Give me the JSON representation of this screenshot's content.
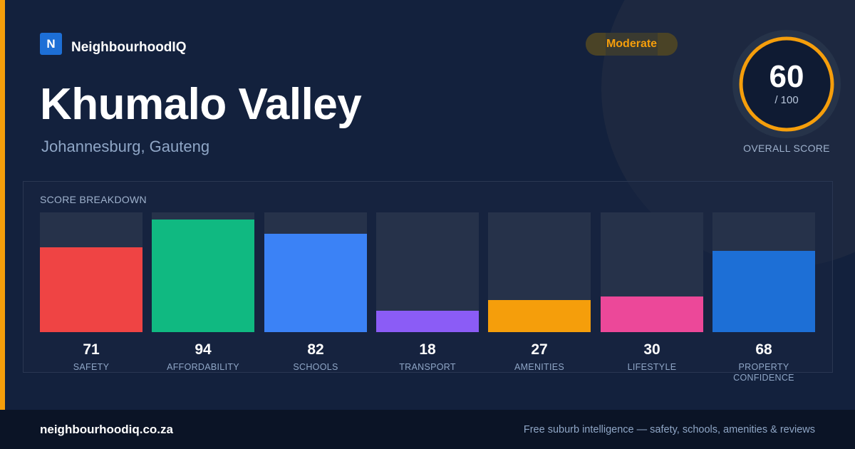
{
  "brand": {
    "logo_letter": "N",
    "name": "NeighbourhoodIQ"
  },
  "suburb": {
    "name": "Khumalo Valley",
    "location": "Johannesburg, Gauteng"
  },
  "rating_badge": "Moderate",
  "overall": {
    "score": "60",
    "max": "/ 100",
    "caption": "OVERALL SCORE",
    "fraction": 0.6
  },
  "breakdown": {
    "heading": "SCORE BREAKDOWN",
    "max": 100,
    "items": [
      {
        "label": "SAFETY",
        "value": 71,
        "value_text": "71",
        "color": "#ef4444"
      },
      {
        "label": "AFFORDABILITY",
        "value": 94,
        "value_text": "94",
        "color": "#10b981"
      },
      {
        "label": "SCHOOLS",
        "value": 82,
        "value_text": "82",
        "color": "#3b82f6"
      },
      {
        "label": "TRANSPORT",
        "value": 18,
        "value_text": "18",
        "color": "#8b5cf6"
      },
      {
        "label": "AMENITIES",
        "value": 27,
        "value_text": "27",
        "color": "#f59e0b"
      },
      {
        "label": "LIFESTYLE",
        "value": 30,
        "value_text": "30",
        "color": "#ec4899"
      },
      {
        "label": "PROPERTY CONFIDENCE",
        "value": 68,
        "value_text": "68",
        "color": "#1d6fd6"
      }
    ]
  },
  "footer": {
    "url": "neighbourhoodiq.co.za",
    "tagline": "Free suburb intelligence — safety, schools, amenities & reviews"
  },
  "colors": {
    "accent": "#f59e0b",
    "background": "#13213d"
  }
}
